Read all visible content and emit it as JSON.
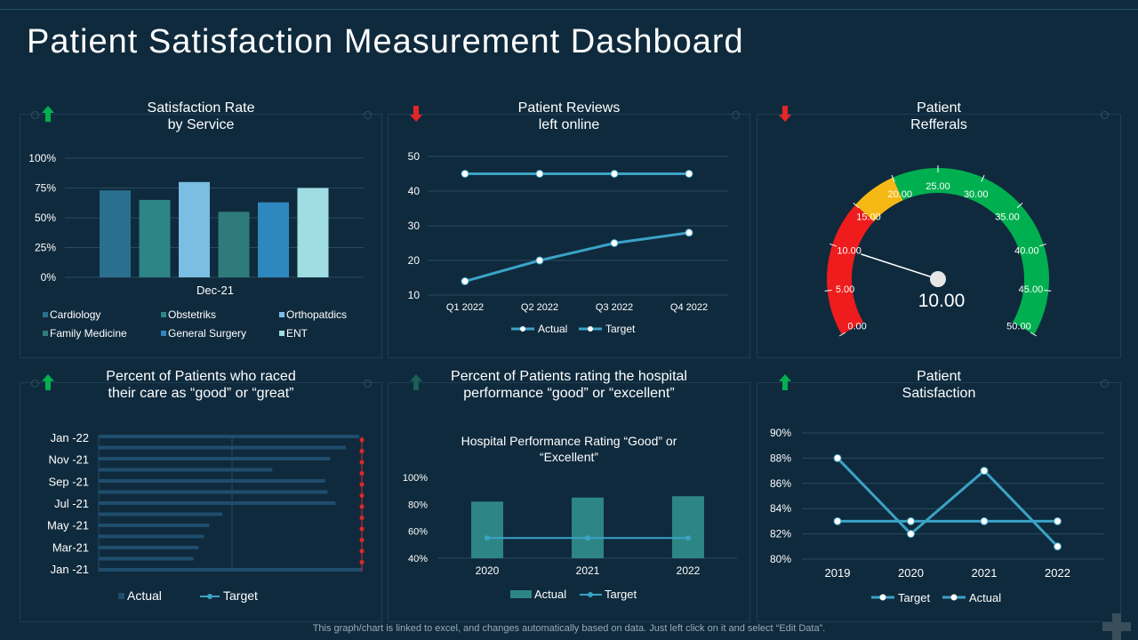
{
  "page": {
    "title": "Patient Satisfaction Measurement Dashboard",
    "footer": "This graph/chart is linked to excel,  and changes automatically based on data. Just left click on it and select “Edit Data”."
  },
  "colors": {
    "background": "#0f2a3d",
    "arrow_up": "#00b050",
    "arrow_down": "#e32626",
    "line": "#3ba3c6",
    "gauge_red": "#ee1c1c",
    "gauge_yellow": "#f5b815",
    "gauge_green": "#00b050"
  },
  "panels": {
    "satisfaction_rate": {
      "title_line1": "Satisfaction Rate",
      "title_line2": "by Service",
      "trend": "up"
    },
    "patient_reviews": {
      "title_line1": "Patient Reviews",
      "title_line2": "left online",
      "trend": "down"
    },
    "patient_referrals": {
      "title_line1": "Patient",
      "title_line2": "Refferals",
      "trend": "down"
    },
    "percent_good_great": {
      "title_line1": "Percent of Patients who raced",
      "title_line2": "their care as “good” or “great”",
      "trend": "up"
    },
    "percent_good_excellent": {
      "title_line1": "Percent of Patients rating the hospital",
      "title_line2": "performance “good” or “excellent”",
      "trend": "up"
    },
    "patient_satisfaction": {
      "title_line1": "Patient",
      "title_line2": "Satisfaction",
      "trend": "up"
    }
  },
  "chart_data": [
    {
      "id": "satisfaction_rate",
      "type": "bar",
      "categories": [
        "Dec-21"
      ],
      "series": [
        {
          "name": "Cardiology",
          "values": [
            73
          ]
        },
        {
          "name": "Obstetriks",
          "values": [
            65
          ]
        },
        {
          "name": "Orthopatdics",
          "values": [
            80
          ]
        },
        {
          "name": "Family Medicine",
          "values": [
            55
          ]
        },
        {
          "name": "General Surgery",
          "values": [
            63
          ]
        },
        {
          "name": "ENT",
          "values": [
            75
          ]
        }
      ],
      "yticks": [
        "0%",
        "25%",
        "50%",
        "75%",
        "100%"
      ],
      "ylim": [
        0,
        100
      ],
      "series_colors": [
        "#2b6f8f",
        "#2e8585",
        "#7bbde3",
        "#2f7b7b",
        "#2f87bf",
        "#9fdde3"
      ]
    },
    {
      "id": "patient_reviews",
      "type": "line",
      "categories": [
        "Q1 2022",
        "Q2 2022",
        "Q3 2022",
        "Q4 2022"
      ],
      "series": [
        {
          "name": "Actual",
          "values": [
            14,
            20,
            25,
            28
          ]
        },
        {
          "name": "Target",
          "values": [
            45,
            45,
            45,
            45
          ]
        }
      ],
      "yticks": [
        "10",
        "20",
        "30",
        "40",
        "50"
      ],
      "ylim": [
        10,
        50
      ]
    },
    {
      "id": "patient_referrals",
      "type": "gauge",
      "value": 10.0,
      "value_label": "10.00",
      "min": 0,
      "max": 50,
      "ticks": [
        "0.00",
        "5.00",
        "10.00",
        "15.00",
        "20.00",
        "25.00",
        "30.00",
        "35.00",
        "40.00",
        "45.00",
        "50.00"
      ],
      "bands": [
        {
          "from": 0,
          "to": 15,
          "color": "#ee1c1c"
        },
        {
          "from": 15,
          "to": 20,
          "color": "#f5b815"
        },
        {
          "from": 20,
          "to": 50,
          "color": "#00b050"
        }
      ]
    },
    {
      "id": "percent_good_great",
      "type": "bar",
      "orientation": "horizontal",
      "ytick_labels": [
        "Jan -21",
        "Mar-21",
        "May -21",
        "Jul -21",
        "Sep -21",
        "Nov -21",
        "Jan -22"
      ],
      "series": [
        {
          "name": "Actual",
          "values": [
            100,
            36,
            38,
            40,
            42,
            47,
            90,
            87,
            86,
            66,
            88,
            94,
            99
          ]
        },
        {
          "name": "Target",
          "values": [
            100,
            100,
            100,
            100,
            100,
            100,
            100,
            100,
            100,
            100,
            100,
            100,
            100
          ]
        }
      ]
    },
    {
      "id": "percent_good_excellent",
      "type": "bar",
      "title": "Hospital Performance Rating “Good” or “Excellent”",
      "title_line1": "Hospital Performance Rating “Good” or",
      "title_line2": "“Excellent”",
      "categories": [
        "2020",
        "2021",
        "2022"
      ],
      "series": [
        {
          "name": "Actual",
          "values": [
            82,
            85,
            86
          ]
        },
        {
          "name": "Target",
          "values": [
            55,
            55,
            55
          ]
        }
      ],
      "yticks": [
        "40%",
        "60%",
        "80%",
        "100%"
      ],
      "ylim": [
        40,
        100
      ]
    },
    {
      "id": "patient_satisfaction",
      "type": "line",
      "categories": [
        "2019",
        "2020",
        "2021",
        "2022"
      ],
      "series": [
        {
          "name": "Target",
          "values": [
            83,
            83,
            83,
            83
          ]
        },
        {
          "name": "Actual",
          "values": [
            88,
            82,
            87,
            81
          ]
        }
      ],
      "yticks": [
        "80%",
        "82%",
        "84%",
        "86%",
        "88%",
        "90%"
      ],
      "ylim": [
        80,
        90
      ]
    }
  ]
}
